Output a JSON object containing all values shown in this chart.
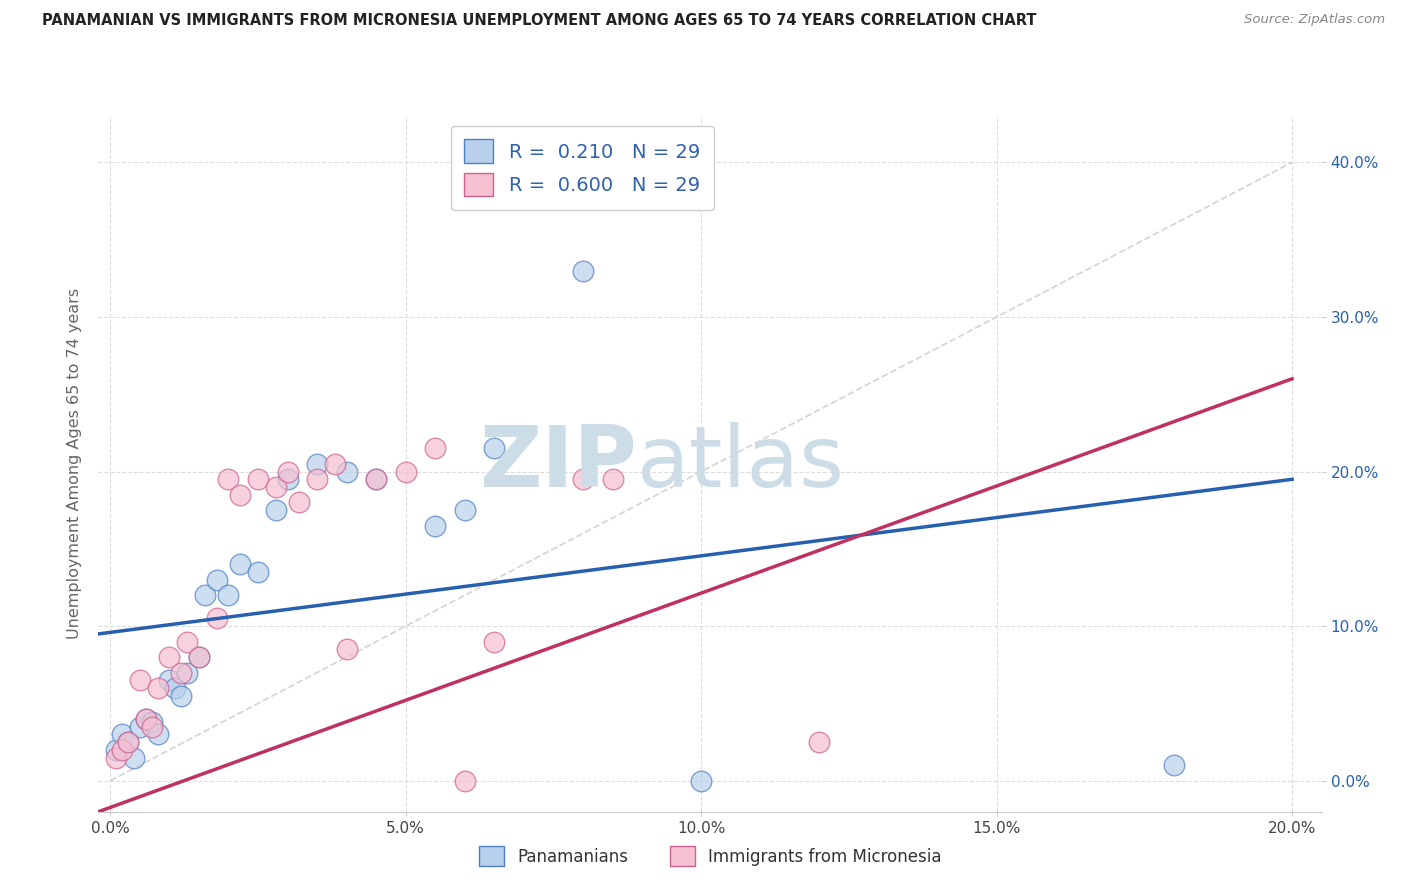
{
  "title": "PANAMANIAN VS IMMIGRANTS FROM MICRONESIA UNEMPLOYMENT AMONG AGES 65 TO 74 YEARS CORRELATION CHART",
  "source": "Source: ZipAtlas.com",
  "ylabel": "Unemployment Among Ages 65 to 74 years",
  "xlim": [
    -0.002,
    0.205
  ],
  "ylim": [
    -0.02,
    0.43
  ],
  "xticks": [
    0.0,
    0.05,
    0.1,
    0.15,
    0.2
  ],
  "yticks": [
    0.0,
    0.1,
    0.2,
    0.3,
    0.4
  ],
  "xtick_labels": [
    "0.0%",
    "5.0%",
    "10.0%",
    "15.0%",
    "20.0%"
  ],
  "ytick_labels": [
    "0.0%",
    "10.0%",
    "20.0%",
    "30.0%",
    "40.0%"
  ],
  "blue_scatter_x": [
    0.001,
    0.002,
    0.003,
    0.004,
    0.005,
    0.006,
    0.007,
    0.008,
    0.01,
    0.011,
    0.012,
    0.013,
    0.015,
    0.016,
    0.018,
    0.02,
    0.022,
    0.025,
    0.028,
    0.03,
    0.035,
    0.04,
    0.045,
    0.055,
    0.06,
    0.065,
    0.08,
    0.1,
    0.18
  ],
  "blue_scatter_y": [
    0.02,
    0.03,
    0.025,
    0.015,
    0.035,
    0.04,
    0.038,
    0.03,
    0.065,
    0.06,
    0.055,
    0.07,
    0.08,
    0.12,
    0.13,
    0.12,
    0.14,
    0.135,
    0.175,
    0.195,
    0.205,
    0.2,
    0.195,
    0.165,
    0.175,
    0.215,
    0.33,
    0.0,
    0.01
  ],
  "pink_scatter_x": [
    0.001,
    0.002,
    0.003,
    0.005,
    0.006,
    0.007,
    0.008,
    0.01,
    0.012,
    0.013,
    0.015,
    0.018,
    0.02,
    0.022,
    0.025,
    0.028,
    0.03,
    0.032,
    0.035,
    0.038,
    0.04,
    0.045,
    0.05,
    0.055,
    0.06,
    0.065,
    0.08,
    0.085,
    0.12
  ],
  "pink_scatter_y": [
    0.015,
    0.02,
    0.025,
    0.065,
    0.04,
    0.035,
    0.06,
    0.08,
    0.07,
    0.09,
    0.08,
    0.105,
    0.195,
    0.185,
    0.195,
    0.19,
    0.2,
    0.18,
    0.195,
    0.205,
    0.085,
    0.195,
    0.2,
    0.215,
    0.0,
    0.09,
    0.195,
    0.195,
    0.025
  ],
  "blue_R": 0.21,
  "blue_N": 29,
  "pink_R": 0.6,
  "pink_N": 29,
  "blue_scatter_color": "#b8d0ec",
  "pink_scatter_color": "#f5c0d0",
  "blue_edge_color": "#5080c0",
  "pink_edge_color": "#d06090",
  "blue_line_color": "#2860b0",
  "pink_line_color": "#c03060",
  "ref_line_color": "#cccccc",
  "legend_text_color": "#3060b0",
  "legend_blue_label": "Panamanians",
  "legend_pink_label": "Immigrants from Micronesia",
  "watermark_zip": "ZIP",
  "watermark_atlas": "atlas",
  "watermark_color": "#ccdde8",
  "title_color": "#222222",
  "source_color": "#888888",
  "ylabel_color": "#666666",
  "grid_color": "#dddddd",
  "background_color": "#ffffff",
  "blue_line_y0": 0.095,
  "blue_line_y1": 0.195,
  "pink_line_y0": -0.02,
  "pink_line_y1": 0.26
}
